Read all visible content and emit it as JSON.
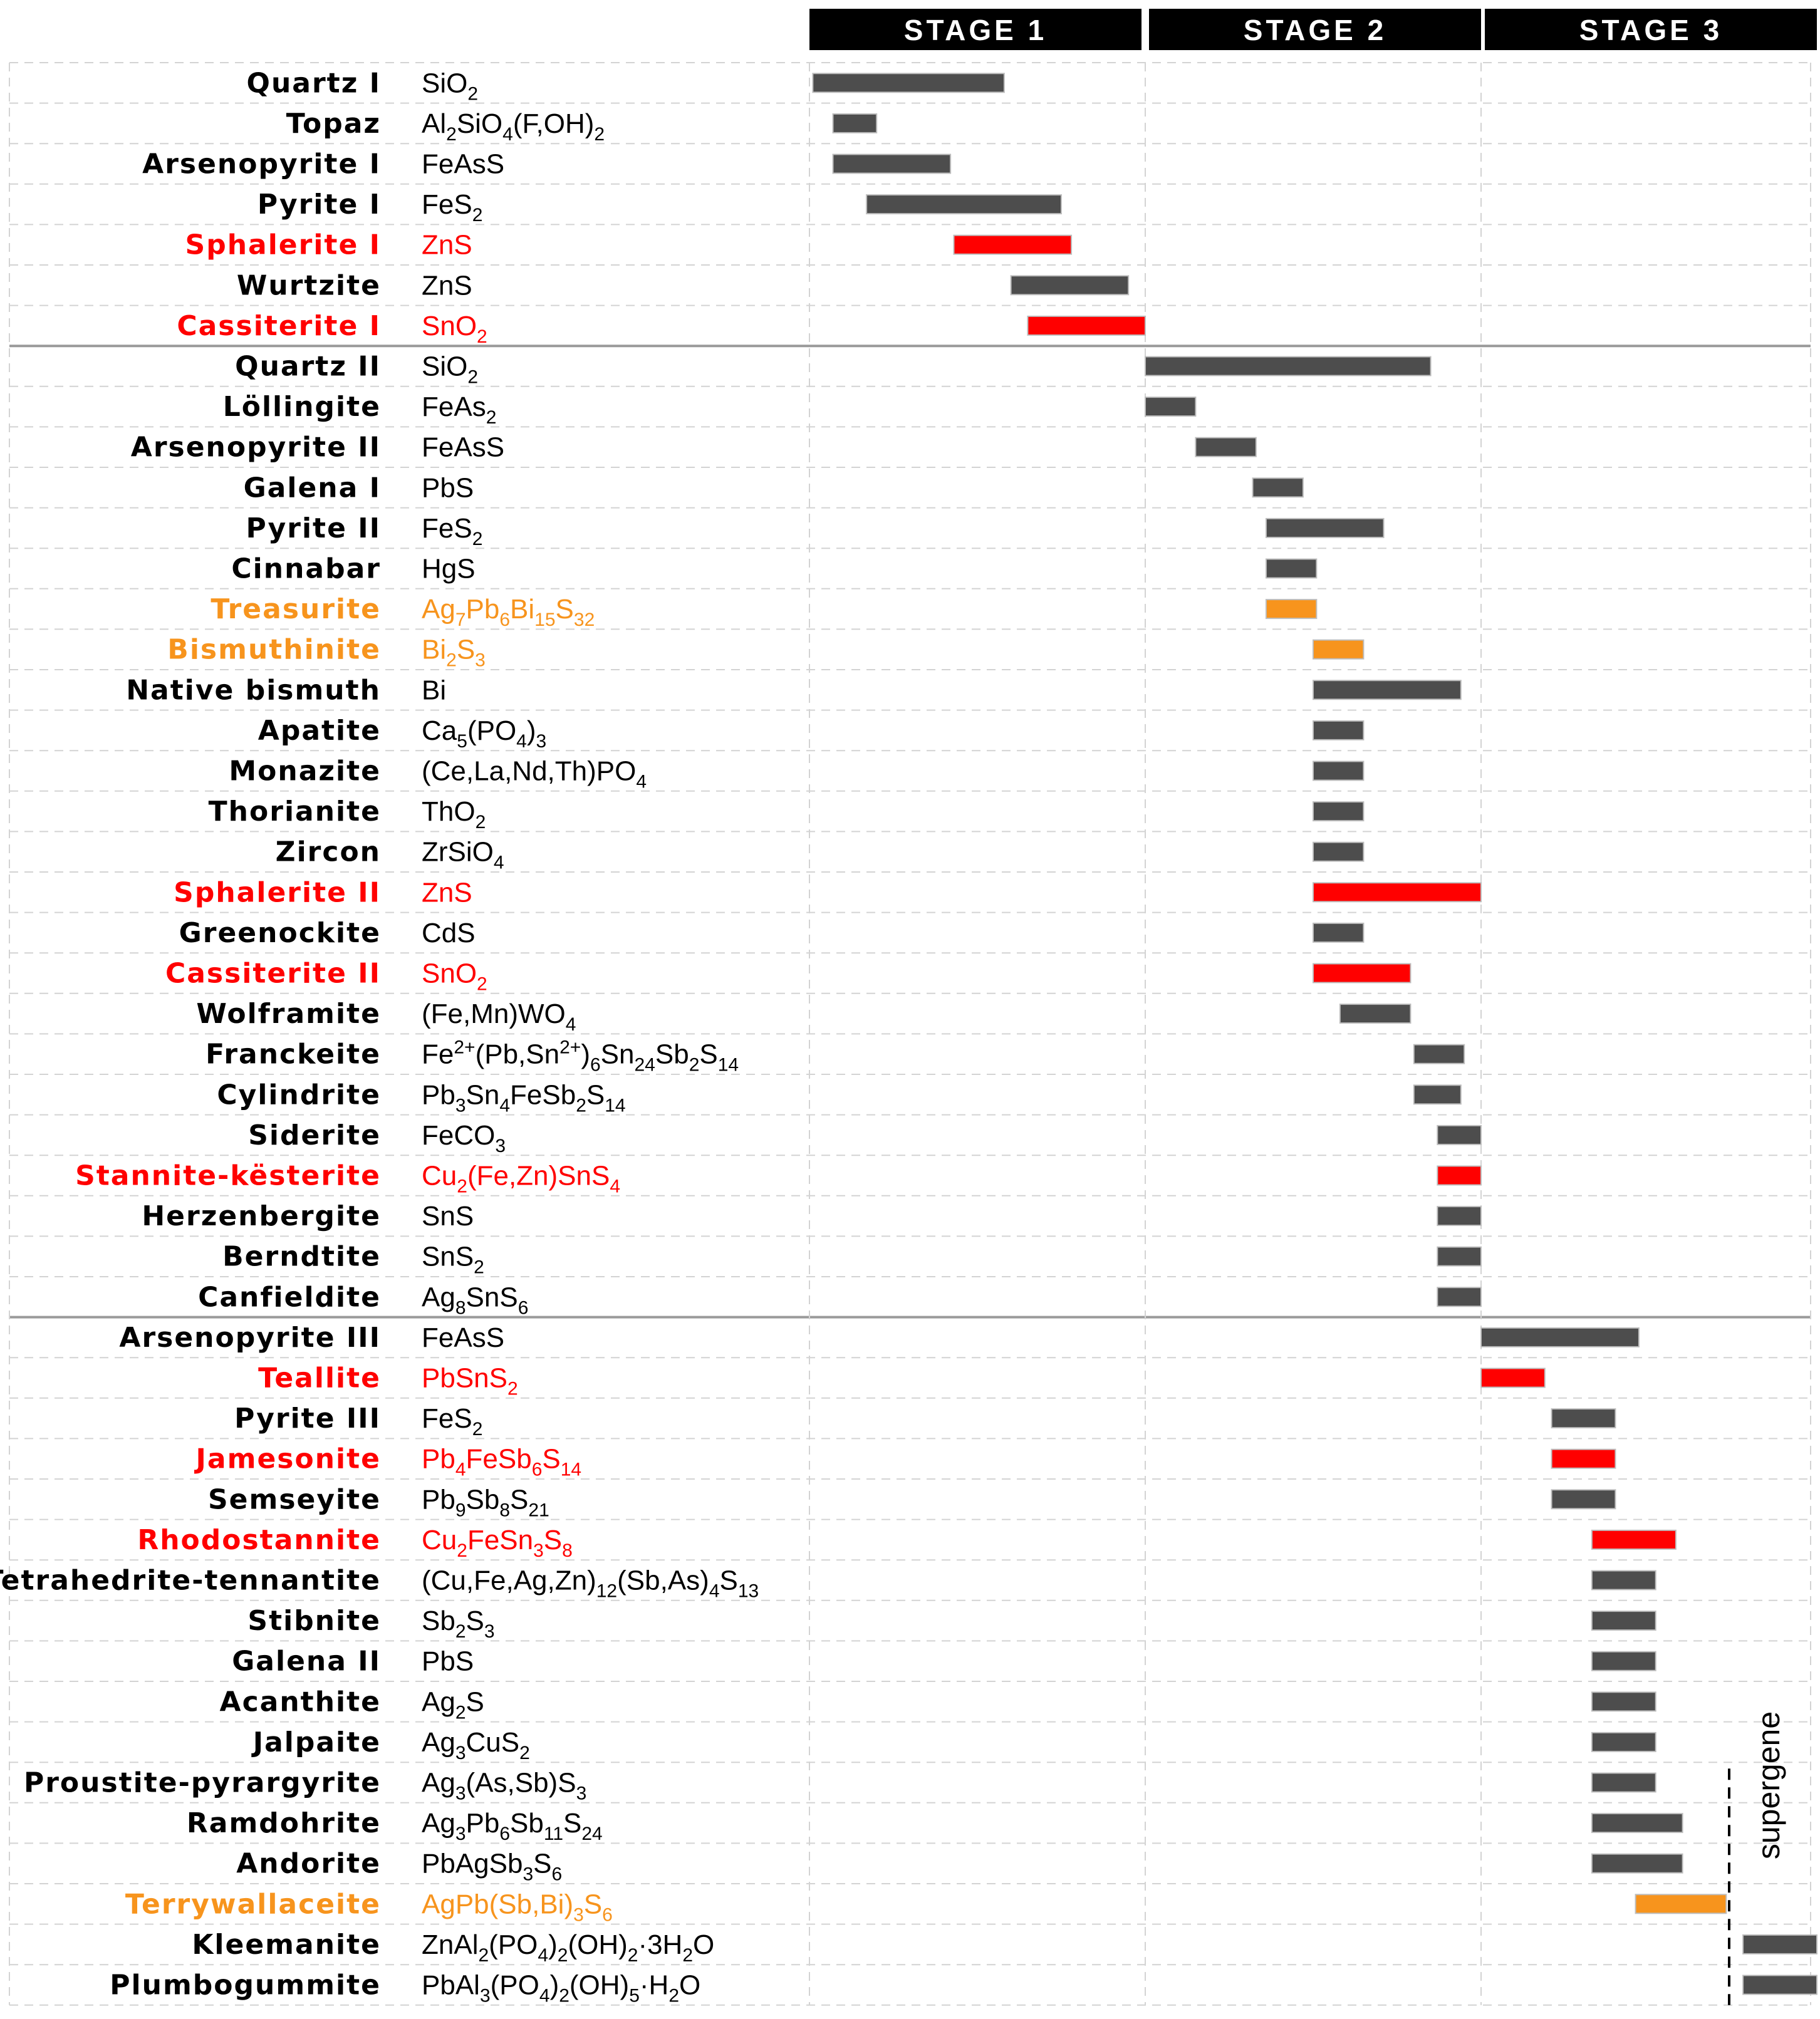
{
  "colors": {
    "gray": "#4d4d4d",
    "red": "#ff0000",
    "orange": "#f7941d",
    "black": "#000000",
    "grid": "#d3d3d3",
    "separator": "#9a9a9a",
    "header_bg": "#000000",
    "header_text": "#ffffff"
  },
  "chart_data": {
    "type": "paragenetic-sequence",
    "title": "",
    "stages": [
      "STAGE 1",
      "STAGE 2",
      "STAGE 3"
    ],
    "x_domain": [
      0,
      3
    ],
    "supergene_label": "supergene",
    "supergene_start_index": 42,
    "minerals": [
      {
        "name": "Quartz I",
        "formula": "SiO_{2}",
        "color": "gray",
        "start": 0.01,
        "end": 0.58,
        "group": 1
      },
      {
        "name": "Topaz",
        "formula": "Al_{2}SiO_{4}(F,OH)_{2}",
        "color": "gray",
        "start": 0.07,
        "end": 0.2,
        "group": 1
      },
      {
        "name": "Arsenopyrite I",
        "formula": "FeAsS",
        "color": "gray",
        "start": 0.07,
        "end": 0.42,
        "group": 1
      },
      {
        "name": "Pyrite I",
        "formula": "FeS_{2}",
        "color": "gray",
        "start": 0.17,
        "end": 0.75,
        "group": 1
      },
      {
        "name": "Sphalerite I",
        "formula": "ZnS",
        "color": "red",
        "start": 0.43,
        "end": 0.78,
        "group": 1
      },
      {
        "name": "Wurtzite",
        "formula": "ZnS",
        "color": "gray",
        "start": 0.6,
        "end": 0.95,
        "group": 1
      },
      {
        "name": "Cassiterite I",
        "formula": "SnO_{2}",
        "color": "red",
        "start": 0.65,
        "end": 1.0,
        "group": 1
      },
      {
        "name": "Quartz II",
        "formula": "SiO_{2}",
        "color": "gray",
        "start": 1.0,
        "end": 1.85,
        "group": 2
      },
      {
        "name": "Löllingite",
        "formula": "FeAs_{2}",
        "color": "gray",
        "start": 1.0,
        "end": 1.15,
        "group": 2
      },
      {
        "name": "Arsenopyrite II",
        "formula": "FeAsS",
        "color": "gray",
        "start": 1.15,
        "end": 1.33,
        "group": 2
      },
      {
        "name": "Galena I",
        "formula": "PbS",
        "color": "gray",
        "start": 1.32,
        "end": 1.47,
        "group": 2
      },
      {
        "name": "Pyrite II",
        "formula": "FeS_{2}",
        "color": "gray",
        "start": 1.36,
        "end": 1.71,
        "group": 2
      },
      {
        "name": "Cinnabar",
        "formula": "HgS",
        "color": "gray",
        "start": 1.36,
        "end": 1.51,
        "group": 2
      },
      {
        "name": "Treasurite",
        "formula": "Ag_{7}Pb_{6}Bi_{15}S_{32}",
        "color": "orange",
        "start": 1.36,
        "end": 1.51,
        "group": 2
      },
      {
        "name": "Bismuthinite",
        "formula": "Bi_{2}S_{3}",
        "color": "orange",
        "start": 1.5,
        "end": 1.65,
        "group": 2
      },
      {
        "name": "Native bismuth",
        "formula": "Bi",
        "color": "gray",
        "start": 1.5,
        "end": 1.94,
        "group": 2
      },
      {
        "name": "Apatite",
        "formula": "Ca_{5}(PO_{4})_{3}",
        "color": "gray",
        "start": 1.5,
        "end": 1.65,
        "group": 2
      },
      {
        "name": "Monazite",
        "formula": "(Ce,La,Nd,Th)PO_{4}",
        "color": "gray",
        "start": 1.5,
        "end": 1.65,
        "group": 2
      },
      {
        "name": "Thorianite",
        "formula": "ThO_{2}",
        "color": "gray",
        "start": 1.5,
        "end": 1.65,
        "group": 2
      },
      {
        "name": "Zircon",
        "formula": "ZrSiO_{4}",
        "color": "gray",
        "start": 1.5,
        "end": 1.65,
        "group": 2
      },
      {
        "name": "Sphalerite II",
        "formula": "ZnS",
        "color": "red",
        "start": 1.5,
        "end": 2.0,
        "group": 2
      },
      {
        "name": "Greenockite",
        "formula": "CdS",
        "color": "gray",
        "start": 1.5,
        "end": 1.65,
        "group": 2
      },
      {
        "name": "Cassiterite II",
        "formula": "SnO_{2}",
        "color": "red",
        "start": 1.5,
        "end": 1.79,
        "group": 2
      },
      {
        "name": "Wolframite",
        "formula": "(Fe,Mn)WO_{4}",
        "color": "gray",
        "start": 1.58,
        "end": 1.79,
        "group": 2
      },
      {
        "name": "Franckeite",
        "formula": "Fe^{2+}(Pb,Sn^{2+})_{6}Sn_{24}Sb_{2}S_{14}",
        "color": "gray",
        "start": 1.8,
        "end": 1.95,
        "group": 2
      },
      {
        "name": "Cylindrite",
        "formula": "Pb_{3}Sn_{4}FeSb_{2}S_{14}",
        "color": "gray",
        "start": 1.8,
        "end": 1.94,
        "group": 2
      },
      {
        "name": "Siderite",
        "formula": "FeCO_{3}",
        "color": "gray",
        "start": 1.87,
        "end": 2.0,
        "group": 2
      },
      {
        "name": "Stannite-kësterite",
        "formula": "Cu_{2}(Fe,Zn)SnS_{4}",
        "color": "red",
        "start": 1.87,
        "end": 2.0,
        "group": 2
      },
      {
        "name": "Herzenbergite",
        "formula": "SnS",
        "color": "gray",
        "start": 1.87,
        "end": 2.0,
        "group": 2
      },
      {
        "name": "Berndtite",
        "formula": "SnS_{2}",
        "color": "gray",
        "start": 1.87,
        "end": 2.0,
        "group": 2
      },
      {
        "name": "Canfieldite",
        "formula": "Ag_{8}SnS_{6}",
        "color": "gray",
        "start": 1.87,
        "end": 2.0,
        "group": 2
      },
      {
        "name": "Arsenopyrite III",
        "formula": "FeAsS",
        "color": "gray",
        "start": 2.0,
        "end": 2.47,
        "group": 3
      },
      {
        "name": "Teallite",
        "formula": "PbSnS_{2}",
        "color": "red",
        "start": 2.0,
        "end": 2.19,
        "group": 3
      },
      {
        "name": "Pyrite III",
        "formula": "FeS_{2}",
        "color": "gray",
        "start": 2.21,
        "end": 2.4,
        "group": 3
      },
      {
        "name": "Jamesonite",
        "formula": "Pb_{4}FeSb_{6}S_{14}",
        "color": "red",
        "start": 2.21,
        "end": 2.4,
        "group": 3
      },
      {
        "name": "Semseyite",
        "formula": "Pb_{9}Sb_{8}S_{21}",
        "color": "gray",
        "start": 2.21,
        "end": 2.4,
        "group": 3
      },
      {
        "name": "Rhodostannite",
        "formula": "Cu_{2}FeSn_{3}S_{8}",
        "color": "red",
        "start": 2.33,
        "end": 2.58,
        "group": 3
      },
      {
        "name": "Tetrahedrite-tennantite",
        "formula": "(Cu,Fe,Ag,Zn)_{12}(Sb,As)_{4}S_{13}",
        "color": "gray",
        "start": 2.33,
        "end": 2.52,
        "group": 3
      },
      {
        "name": "Stibnite",
        "formula": "Sb_{2}S_{3}",
        "color": "gray",
        "start": 2.33,
        "end": 2.52,
        "group": 3
      },
      {
        "name": "Galena II",
        "formula": "PbS",
        "color": "gray",
        "start": 2.33,
        "end": 2.52,
        "group": 3
      },
      {
        "name": "Acanthite",
        "formula": "Ag_{2}S",
        "color": "gray",
        "start": 2.33,
        "end": 2.52,
        "group": 3
      },
      {
        "name": "Jalpaite",
        "formula": "Ag_{3}CuS_{2}",
        "color": "gray",
        "start": 2.33,
        "end": 2.52,
        "group": 3
      },
      {
        "name": "Proustite-pyrargyrite",
        "formula": "Ag_{3}(As,Sb)S_{3}",
        "color": "gray",
        "start": 2.33,
        "end": 2.52,
        "group": 3
      },
      {
        "name": "Ramdohrite",
        "formula": "Ag_{3}Pb_{6}Sb_{11}S_{24}",
        "color": "gray",
        "start": 2.33,
        "end": 2.6,
        "group": 3
      },
      {
        "name": "Andorite",
        "formula": "PbAgSb_{3}S_{6}",
        "color": "gray",
        "start": 2.33,
        "end": 2.6,
        "group": 3
      },
      {
        "name": "Terrywallaceite",
        "formula": "AgPb(Sb,Bi)_{3}S_{6}",
        "color": "orange",
        "start": 2.46,
        "end": 2.73,
        "group": 3
      },
      {
        "name": "Kleemanite",
        "formula": "ZnAl_{2}(PO_{4})_{2}(OH)_{2}·3H_{2}O",
        "color": "gray",
        "start": 2.78,
        "end": 3.0,
        "group": 3
      },
      {
        "name": "Plumbogummite",
        "formula": "PbAl_{3}(PO_{4})_{2}(OH)_{5}·H_{2}O",
        "color": "gray",
        "start": 2.78,
        "end": 3.0,
        "group": 3
      }
    ]
  }
}
